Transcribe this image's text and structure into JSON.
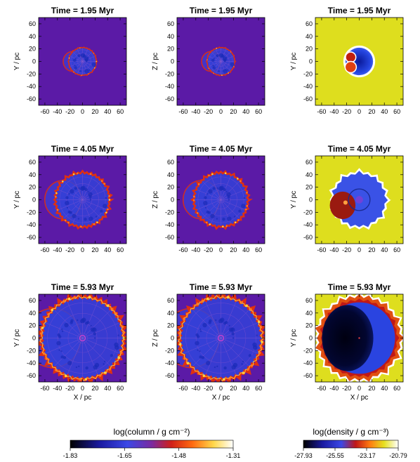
{
  "chart_data": {
    "type": "heatmap",
    "rows": [
      {
        "title": "Time = 1.95 Myr"
      },
      {
        "title": "Time = 4.05 Myr"
      },
      {
        "title": "Time = 5.93 Myr"
      }
    ],
    "panels": [
      {
        "quantity": "column",
        "ylabel": "Y / pc"
      },
      {
        "quantity": "column",
        "ylabel": "Z / pc"
      },
      {
        "quantity": "density",
        "ylabel": "Y / pc"
      }
    ],
    "xlabel": "X / pc",
    "xlim": [
      -70,
      70
    ],
    "ylim": [
      -70,
      70
    ],
    "xticks": [
      -60,
      -40,
      -20,
      0,
      20,
      40,
      60
    ],
    "yticks": [
      60,
      40,
      20,
      0,
      -20,
      -40,
      -60
    ],
    "bubble_radius_pc": [
      22,
      43,
      66
    ],
    "colorbars": [
      {
        "label": "log(column / g cm⁻²)",
        "ticks": [
          "-1.83",
          "-1.65",
          "-1.48",
          "-1.31"
        ]
      },
      {
        "label": "log(density / g cm⁻³)",
        "ticks": [
          "-27.93",
          "-25.55",
          "-23.17",
          "-20.79"
        ]
      }
    ],
    "colors": {
      "column_background": "#5b1aa6",
      "density_background": "#dede1e",
      "bubble_interior": "#1838d8",
      "shell_hot": "#e03010",
      "shell_bright": "#ffd040"
    }
  }
}
